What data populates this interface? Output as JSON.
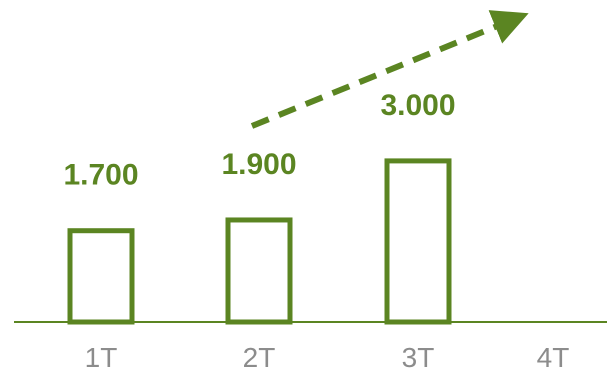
{
  "chart_data": {
    "type": "bar",
    "categories": [
      "1T",
      "2T",
      "3T",
      "4T"
    ],
    "values": [
      1700,
      1900,
      3000,
      null
    ],
    "data_labels": [
      "1.700",
      "1.900",
      "3.000",
      ""
    ],
    "title": "",
    "xlabel": "",
    "ylabel": "",
    "ylim": [
      0,
      5000
    ],
    "grid": false,
    "legend": "none",
    "bar_style": "outline",
    "trend_arrow": "dashed, rising toward 4T",
    "colors": {
      "bar": "#5b8522",
      "label": "#5b8522",
      "axis": "#5b8522",
      "tick": "#8c8c8c"
    }
  }
}
